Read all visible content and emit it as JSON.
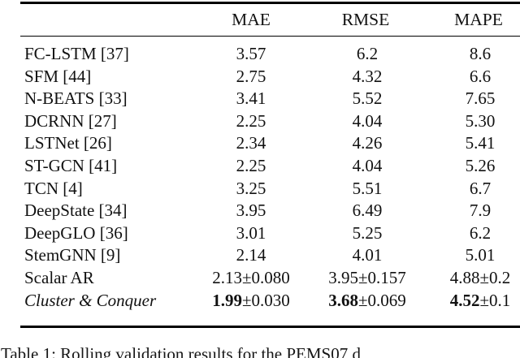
{
  "colors": {
    "background": "#ffffff",
    "text": "#111111",
    "rule": "#000000"
  },
  "table": {
    "columns": [
      "MAE",
      "RMSE",
      "MAPE"
    ],
    "rows": [
      {
        "label": "FC-LSTM [37]",
        "italic": false,
        "cells": [
          {
            "v": "3.57",
            "pm": "",
            "bold": false
          },
          {
            "v": "6.2",
            "pm": "",
            "bold": false
          },
          {
            "v": "8.6",
            "pm": "",
            "bold": false
          }
        ]
      },
      {
        "label": "SFM [44]",
        "italic": false,
        "cells": [
          {
            "v": "2.75",
            "pm": "",
            "bold": false
          },
          {
            "v": "4.32",
            "pm": "",
            "bold": false
          },
          {
            "v": "6.6",
            "pm": "",
            "bold": false
          }
        ]
      },
      {
        "label": "N-BEATS [33]",
        "italic": false,
        "cells": [
          {
            "v": "3.41",
            "pm": "",
            "bold": false
          },
          {
            "v": "5.52",
            "pm": "",
            "bold": false
          },
          {
            "v": "7.65",
            "pm": "",
            "bold": false
          }
        ]
      },
      {
        "label": "DCRNN [27]",
        "italic": false,
        "cells": [
          {
            "v": "2.25",
            "pm": "",
            "bold": false
          },
          {
            "v": "4.04",
            "pm": "",
            "bold": false
          },
          {
            "v": "5.30",
            "pm": "",
            "bold": false
          }
        ]
      },
      {
        "label": "LSTNet [26]",
        "italic": false,
        "cells": [
          {
            "v": "2.34",
            "pm": "",
            "bold": false
          },
          {
            "v": "4.26",
            "pm": "",
            "bold": false
          },
          {
            "v": "5.41",
            "pm": "",
            "bold": false
          }
        ]
      },
      {
        "label": "ST-GCN [41]",
        "italic": false,
        "cells": [
          {
            "v": "2.25",
            "pm": "",
            "bold": false
          },
          {
            "v": "4.04",
            "pm": "",
            "bold": false
          },
          {
            "v": "5.26",
            "pm": "",
            "bold": false
          }
        ]
      },
      {
        "label": "TCN [4]",
        "italic": false,
        "cells": [
          {
            "v": "3.25",
            "pm": "",
            "bold": false
          },
          {
            "v": "5.51",
            "pm": "",
            "bold": false
          },
          {
            "v": "6.7",
            "pm": "",
            "bold": false
          }
        ]
      },
      {
        "label": "DeepState [34]",
        "italic": false,
        "cells": [
          {
            "v": "3.95",
            "pm": "",
            "bold": false
          },
          {
            "v": "6.49",
            "pm": "",
            "bold": false
          },
          {
            "v": "7.9",
            "pm": "",
            "bold": false
          }
        ]
      },
      {
        "label": "DeepGLO [36]",
        "italic": false,
        "cells": [
          {
            "v": "3.01",
            "pm": "",
            "bold": false
          },
          {
            "v": "5.25",
            "pm": "",
            "bold": false
          },
          {
            "v": "6.2",
            "pm": "",
            "bold": false
          }
        ]
      },
      {
        "label": "StemGNN [9]",
        "italic": false,
        "cells": [
          {
            "v": "2.14",
            "pm": "",
            "bold": false
          },
          {
            "v": "4.01",
            "pm": "",
            "bold": false
          },
          {
            "v": "5.01",
            "pm": "",
            "bold": false
          }
        ]
      },
      {
        "label": "Scalar AR",
        "italic": false,
        "cells": [
          {
            "v": "2.13",
            "pm": "±0.080",
            "bold": false
          },
          {
            "v": "3.95",
            "pm": "±0.157",
            "bold": false
          },
          {
            "v": "4.88",
            "pm": "±0.2",
            "bold": false
          }
        ]
      },
      {
        "label": "Cluster & Conquer",
        "italic": true,
        "cells": [
          {
            "v": "1.99",
            "pm": "±0.030",
            "bold": true
          },
          {
            "v": "3.68",
            "pm": "±0.069",
            "bold": true
          },
          {
            "v": "4.52",
            "pm": "±0.1",
            "bold": true
          }
        ]
      }
    ]
  },
  "caption": "Table 1: Rolling validation results for the PEMS07 d"
}
